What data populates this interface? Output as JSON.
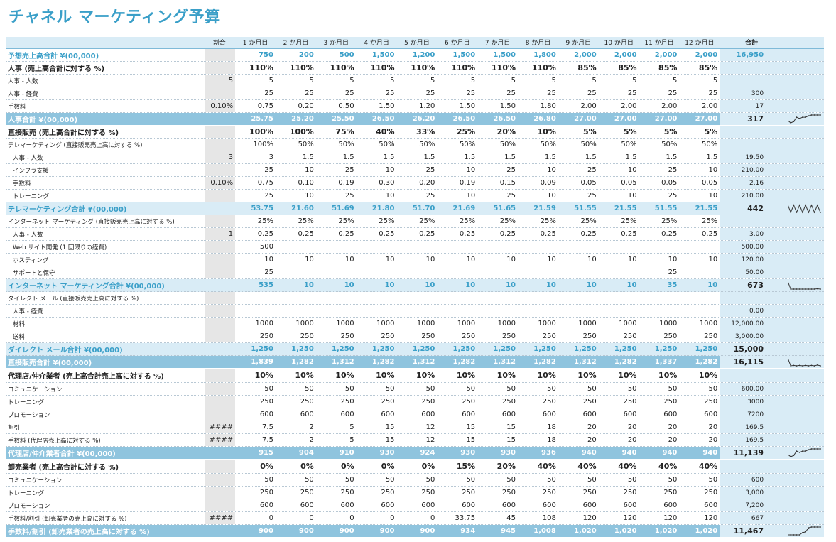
{
  "title": "チャネル マーケティング予算",
  "header": {
    "ratio": "割合",
    "months": [
      "1 か月目",
      "2 か月目",
      "3 か月目",
      "4 か月目",
      "5 か月目",
      "6 か月目",
      "7 か月目",
      "8 か月目",
      "9 か月目",
      "10 か月目",
      "11 か月目",
      "12 か月目"
    ],
    "total": "合計"
  },
  "rows": [
    {
      "t": "top",
      "label": "予想売上高合計 ¥(00,000)",
      "ratio": "",
      "m": [
        "750",
        "200",
        "500",
        "1,500",
        "1,200",
        "1,500",
        "1,500",
        "1,800",
        "2,000",
        "2,000",
        "2,000",
        "2,000"
      ],
      "total": "16,950"
    },
    {
      "t": "bold",
      "label": "人事 (売上高合計に対する %)",
      "ratio": "",
      "m": [
        "110%",
        "110%",
        "110%",
        "110%",
        "110%",
        "110%",
        "110%",
        "110%",
        "85%",
        "85%",
        "85%",
        "85%"
      ],
      "total": ""
    },
    {
      "t": "sub",
      "label": "人事 - 人数",
      "ratio": "5",
      "m": [
        "5",
        "5",
        "5",
        "5",
        "5",
        "5",
        "5",
        "5",
        "5",
        "5",
        "5",
        "5"
      ],
      "total": ""
    },
    {
      "t": "sub",
      "label": "人事 - 経費",
      "ratio": "",
      "m": [
        "25",
        "25",
        "25",
        "25",
        "25",
        "25",
        "25",
        "25",
        "25",
        "25",
        "25",
        "25"
      ],
      "total": "300"
    },
    {
      "t": "sub",
      "label": "手数料",
      "ratio": "0.10%",
      "m": [
        "0.75",
        "0.20",
        "0.50",
        "1.50",
        "1.20",
        "1.50",
        "1.50",
        "1.80",
        "2.00",
        "2.00",
        "2.00",
        "2.00"
      ],
      "total": "17"
    },
    {
      "t": "band",
      "label": "人事合計 ¥(00,000)",
      "ratio": "",
      "m": [
        "25.75",
        "25.20",
        "25.50",
        "26.50",
        "26.20",
        "26.50",
        "26.50",
        "26.80",
        "27.00",
        "27.00",
        "27.00",
        "27.00"
      ],
      "total": "317",
      "spark": "personnel"
    },
    {
      "t": "bold",
      "label": "直接販売 (売上高合計に対する %)",
      "ratio": "",
      "m": [
        "100%",
        "100%",
        "75%",
        "40%",
        "33%",
        "25%",
        "20%",
        "10%",
        "5%",
        "5%",
        "5%",
        "5%"
      ],
      "total": ""
    },
    {
      "t": "sub",
      "label": "テレマーケティング (直接販売売上高に対する %)",
      "ratio": "",
      "m": [
        "100%",
        "50%",
        "50%",
        "50%",
        "50%",
        "50%",
        "50%",
        "50%",
        "50%",
        "50%",
        "50%",
        "50%"
      ],
      "total": ""
    },
    {
      "t": "sub ind",
      "label": "人事 - 人数",
      "ratio": "3",
      "m": [
        "3",
        "1.5",
        "1.5",
        "1.5",
        "1.5",
        "1.5",
        "1.5",
        "1.5",
        "1.5",
        "1.5",
        "1.5",
        "1.5"
      ],
      "total": "19.50"
    },
    {
      "t": "sub ind",
      "label": "インフラ支援",
      "ratio": "",
      "m": [
        "25",
        "10",
        "25",
        "10",
        "25",
        "10",
        "25",
        "10",
        "25",
        "10",
        "25",
        "10"
      ],
      "total": "210.00"
    },
    {
      "t": "sub ind",
      "label": "手数料",
      "ratio": "0.10%",
      "m": [
        "0.75",
        "0.10",
        "0.19",
        "0.30",
        "0.20",
        "0.19",
        "0.15",
        "0.09",
        "0.05",
        "0.05",
        "0.05",
        "0.05"
      ],
      "total": "2.16"
    },
    {
      "t": "sub ind",
      "label": "トレーニング",
      "ratio": "",
      "m": [
        "25",
        "10",
        "25",
        "10",
        "25",
        "10",
        "25",
        "10",
        "25",
        "10",
        "25",
        "10"
      ],
      "total": "210.00"
    },
    {
      "t": "light",
      "label": "テレマーケティング合計 ¥(00,000)",
      "ratio": "",
      "m": [
        "53.75",
        "21.60",
        "51.69",
        "21.80",
        "51.70",
        "21.69",
        "51.65",
        "21.59",
        "51.55",
        "21.55",
        "51.55",
        "21.55"
      ],
      "total": "442",
      "spark": "tele"
    },
    {
      "t": "sub",
      "label": "インターネット マーケティング (直接販売売上高に対する %)",
      "ratio": "",
      "m": [
        "25%",
        "25%",
        "25%",
        "25%",
        "25%",
        "25%",
        "25%",
        "25%",
        "25%",
        "25%",
        "25%",
        "25%"
      ],
      "total": ""
    },
    {
      "t": "sub ind",
      "label": "人事 - 人数",
      "ratio": "1",
      "m": [
        "0.25",
        "0.25",
        "0.25",
        "0.25",
        "0.25",
        "0.25",
        "0.25",
        "0.25",
        "0.25",
        "0.25",
        "0.25",
        "0.25"
      ],
      "total": "3.00"
    },
    {
      "t": "sub ind",
      "label": "Web サイト開発 (1 回限りの経費)",
      "ratio": "",
      "m": [
        "500",
        "",
        "",
        "",
        "",
        "",
        "",
        "",
        "",
        "",
        "",
        ""
      ],
      "total": "500.00"
    },
    {
      "t": "sub ind",
      "label": "ホスティング",
      "ratio": "",
      "m": [
        "10",
        "10",
        "10",
        "10",
        "10",
        "10",
        "10",
        "10",
        "10",
        "10",
        "10",
        "10"
      ],
      "total": "120.00"
    },
    {
      "t": "sub ind",
      "label": "サポートと保守",
      "ratio": "",
      "m": [
        "25",
        "",
        "",
        "",
        "",
        "",
        "",
        "",
        "",
        "",
        "25",
        ""
      ],
      "total": "50.00"
    },
    {
      "t": "light",
      "label": "インターネット マーケティング合計 ¥(00,000)",
      "ratio": "",
      "m": [
        "535",
        "10",
        "10",
        "10",
        "10",
        "10",
        "10",
        "10",
        "10",
        "10",
        "35",
        "10"
      ],
      "total": "673",
      "spark": "internet"
    },
    {
      "t": "sub",
      "label": "ダイレクト メール (直接販売売上高に対する %)",
      "ratio": "",
      "m": [
        "",
        "",
        "",
        "",
        "",
        "",
        "",
        "",
        "",
        "",
        "",
        ""
      ],
      "total": ""
    },
    {
      "t": "sub ind",
      "label": "人事 - 経費",
      "ratio": "",
      "m": [
        "",
        "",
        "",
        "",
        "",
        "",
        "",
        "",
        "",
        "",
        "",
        ""
      ],
      "total": "0.00"
    },
    {
      "t": "sub ind",
      "label": "材料",
      "ratio": "",
      "m": [
        "1000",
        "1000",
        "1000",
        "1000",
        "1000",
        "1000",
        "1000",
        "1000",
        "1000",
        "1000",
        "1000",
        "1000"
      ],
      "total": "12,000.00"
    },
    {
      "t": "sub ind",
      "label": "送料",
      "ratio": "",
      "m": [
        "250",
        "250",
        "250",
        "250",
        "250",
        "250",
        "250",
        "250",
        "250",
        "250",
        "250",
        "250"
      ],
      "total": "3,000.00"
    },
    {
      "t": "light",
      "label": "ダイレクト メール合計 ¥(00,000)",
      "ratio": "",
      "m": [
        "1,250",
        "1,250",
        "1,250",
        "1,250",
        "1,250",
        "1,250",
        "1,250",
        "1,250",
        "1,250",
        "1,250",
        "1,250",
        "1,250"
      ],
      "total": "15,000"
    },
    {
      "t": "band",
      "label": "直接販売合計 ¥(00,000)",
      "ratio": "",
      "m": [
        "1,839",
        "1,282",
        "1,312",
        "1,282",
        "1,312",
        "1,282",
        "1,312",
        "1,282",
        "1,312",
        "1,282",
        "1,337",
        "1,282"
      ],
      "total": "16,115",
      "spark": "direct"
    },
    {
      "t": "bold tall",
      "label": "代理店/仲介業者 (売上高合計売上高に対する %)",
      "ratio": "",
      "m": [
        "10%",
        "10%",
        "10%",
        "10%",
        "10%",
        "10%",
        "10%",
        "10%",
        "10%",
        "10%",
        "10%",
        "10%"
      ],
      "total": ""
    },
    {
      "t": "sub",
      "label": "コミュニケーション",
      "ratio": "",
      "m": [
        "50",
        "50",
        "50",
        "50",
        "50",
        "50",
        "50",
        "50",
        "50",
        "50",
        "50",
        "50"
      ],
      "total": "600.00"
    },
    {
      "t": "sub",
      "label": "トレーニング",
      "ratio": "",
      "m": [
        "250",
        "250",
        "250",
        "250",
        "250",
        "250",
        "250",
        "250",
        "250",
        "250",
        "250",
        "250"
      ],
      "total": "3000"
    },
    {
      "t": "sub",
      "label": "プロモーション",
      "ratio": "",
      "m": [
        "600",
        "600",
        "600",
        "600",
        "600",
        "600",
        "600",
        "600",
        "600",
        "600",
        "600",
        "600"
      ],
      "total": "7200"
    },
    {
      "t": "sub",
      "label": "割引",
      "ratio": "####",
      "m": [
        "7.5",
        "2",
        "5",
        "15",
        "12",
        "15",
        "15",
        "18",
        "20",
        "20",
        "20",
        "20"
      ],
      "total": "169.5"
    },
    {
      "t": "sub",
      "label": "手数料 (代理店売上高に対する %)",
      "ratio": "####",
      "m": [
        "7.5",
        "2",
        "5",
        "15",
        "12",
        "15",
        "15",
        "18",
        "20",
        "20",
        "20",
        "20"
      ],
      "total": "169.5"
    },
    {
      "t": "band",
      "label": "代理店/仲介業者合計 ¥(00,000)",
      "ratio": "",
      "m": [
        "915",
        "904",
        "910",
        "930",
        "924",
        "930",
        "930",
        "936",
        "940",
        "940",
        "940",
        "940"
      ],
      "total": "11,139",
      "spark": "agency"
    },
    {
      "t": "bold tall",
      "label": "卸売業者 (売上高合計に対する %)",
      "ratio": "",
      "m": [
        "0%",
        "0%",
        "0%",
        "0%",
        "0%",
        "15%",
        "20%",
        "40%",
        "40%",
        "40%",
        "40%",
        "40%"
      ],
      "total": ""
    },
    {
      "t": "sub",
      "label": "コミュニケーション",
      "ratio": "",
      "m": [
        "50",
        "50",
        "50",
        "50",
        "50",
        "50",
        "50",
        "50",
        "50",
        "50",
        "50",
        "50"
      ],
      "total": "600"
    },
    {
      "t": "sub",
      "label": "トレーニング",
      "ratio": "",
      "m": [
        "250",
        "250",
        "250",
        "250",
        "250",
        "250",
        "250",
        "250",
        "250",
        "250",
        "250",
        "250"
      ],
      "total": "3,000"
    },
    {
      "t": "sub",
      "label": "プロモーション",
      "ratio": "",
      "m": [
        "600",
        "600",
        "600",
        "600",
        "600",
        "600",
        "600",
        "600",
        "600",
        "600",
        "600",
        "600"
      ],
      "total": "7,200"
    },
    {
      "t": "sub",
      "label": "手数料/割引 (卸売業者の売上高に対する %)",
      "ratio": "####",
      "m": [
        "0",
        "0",
        "0",
        "0",
        "0",
        "33.75",
        "45",
        "108",
        "120",
        "120",
        "120",
        "120"
      ],
      "total": "667"
    },
    {
      "t": "band",
      "label": "手数料/割引 (卸売業者の売上高に対する %)",
      "ratio": "",
      "m": [
        "900",
        "900",
        "900",
        "900",
        "900",
        "934",
        "945",
        "1,008",
        "1,020",
        "1,020",
        "1,020",
        "1,020"
      ],
      "total": "11,467",
      "spark": "wholesale"
    }
  ],
  "sparklines": {
    "personnel": [
      25.75,
      25.2,
      25.5,
      26.5,
      26.2,
      26.5,
      26.5,
      26.8,
      27.0,
      27.0,
      27.0,
      27.0
    ],
    "tele": [
      53.75,
      21.6,
      51.69,
      21.8,
      51.7,
      21.69,
      51.65,
      21.59,
      51.55,
      21.55,
      51.55,
      21.55
    ],
    "internet": [
      535,
      10,
      10,
      10,
      10,
      10,
      10,
      10,
      10,
      10,
      35,
      10
    ],
    "direct": [
      1839,
      1282,
      1312,
      1282,
      1312,
      1282,
      1312,
      1282,
      1312,
      1282,
      1337,
      1282
    ],
    "agency": [
      915,
      904,
      910,
      930,
      924,
      930,
      930,
      936,
      940,
      940,
      940,
      940
    ],
    "wholesale": [
      900,
      900,
      900,
      900,
      900,
      934,
      945,
      1008,
      1020,
      1020,
      1020,
      1020
    ]
  },
  "colors": {
    "accent": "#3a9fc8",
    "band": "#8fc4de",
    "light": "#d9ecf6",
    "ratio_bg": "#e6e6e6"
  }
}
